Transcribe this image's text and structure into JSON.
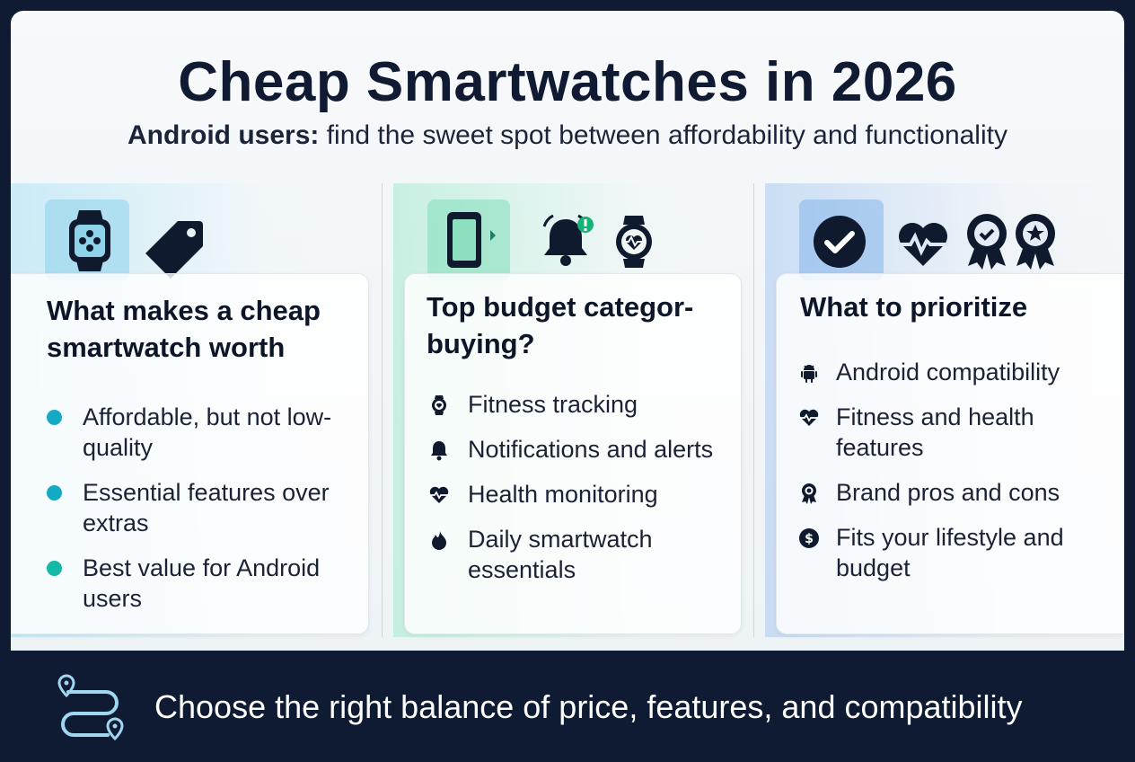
{
  "header": {
    "title": "Cheap Smartwatches in 2026",
    "subtitle_bold": "Android users:",
    "subtitle_rest": " find the sweet spot between affordability and functionality"
  },
  "columns": [
    {
      "heading": "What makes a cheap smartwatch worth",
      "icons": [
        "smartwatch-icon",
        "price-tag-icon"
      ],
      "items": [
        "Affordable, but not low-quality",
        "Essential features over extras",
        "Best value for Android users"
      ]
    },
    {
      "heading": "Top budget categor- buying?",
      "icons": [
        "smartphone-icon",
        "bell-alert-icon",
        "heart-watch-icon"
      ],
      "items": [
        {
          "icon": "watch-icon",
          "label": "Fitness tracking"
        },
        {
          "icon": "bell-icon",
          "label": "Notifications and alerts"
        },
        {
          "icon": "heartbeat-icon",
          "label": "Health monitoring"
        },
        {
          "icon": "flame-icon",
          "label": "Daily smartwatch essentials"
        }
      ]
    },
    {
      "heading": "What to prioritize",
      "icons": [
        "checkmark-icon",
        "heartbeat-icon",
        "award-check-icon",
        "award-star-icon"
      ],
      "items": [
        {
          "icon": "android-icon",
          "label": "Android compatibility"
        },
        {
          "icon": "heartbeat-icon",
          "label": "Fitness and health features"
        },
        {
          "icon": "award-icon",
          "label": "Brand pros and cons"
        },
        {
          "icon": "dollar-icon",
          "label": "Fits your lifestyle and budget"
        }
      ]
    }
  ],
  "footer": {
    "text": "Choose the right balance of price, features, and compatibility",
    "icon": "route-icon"
  },
  "colors": {
    "dark_navy": "#0e1b33",
    "bullet_blue": "#15aac3",
    "bullet_teal": "#14b8a6"
  }
}
